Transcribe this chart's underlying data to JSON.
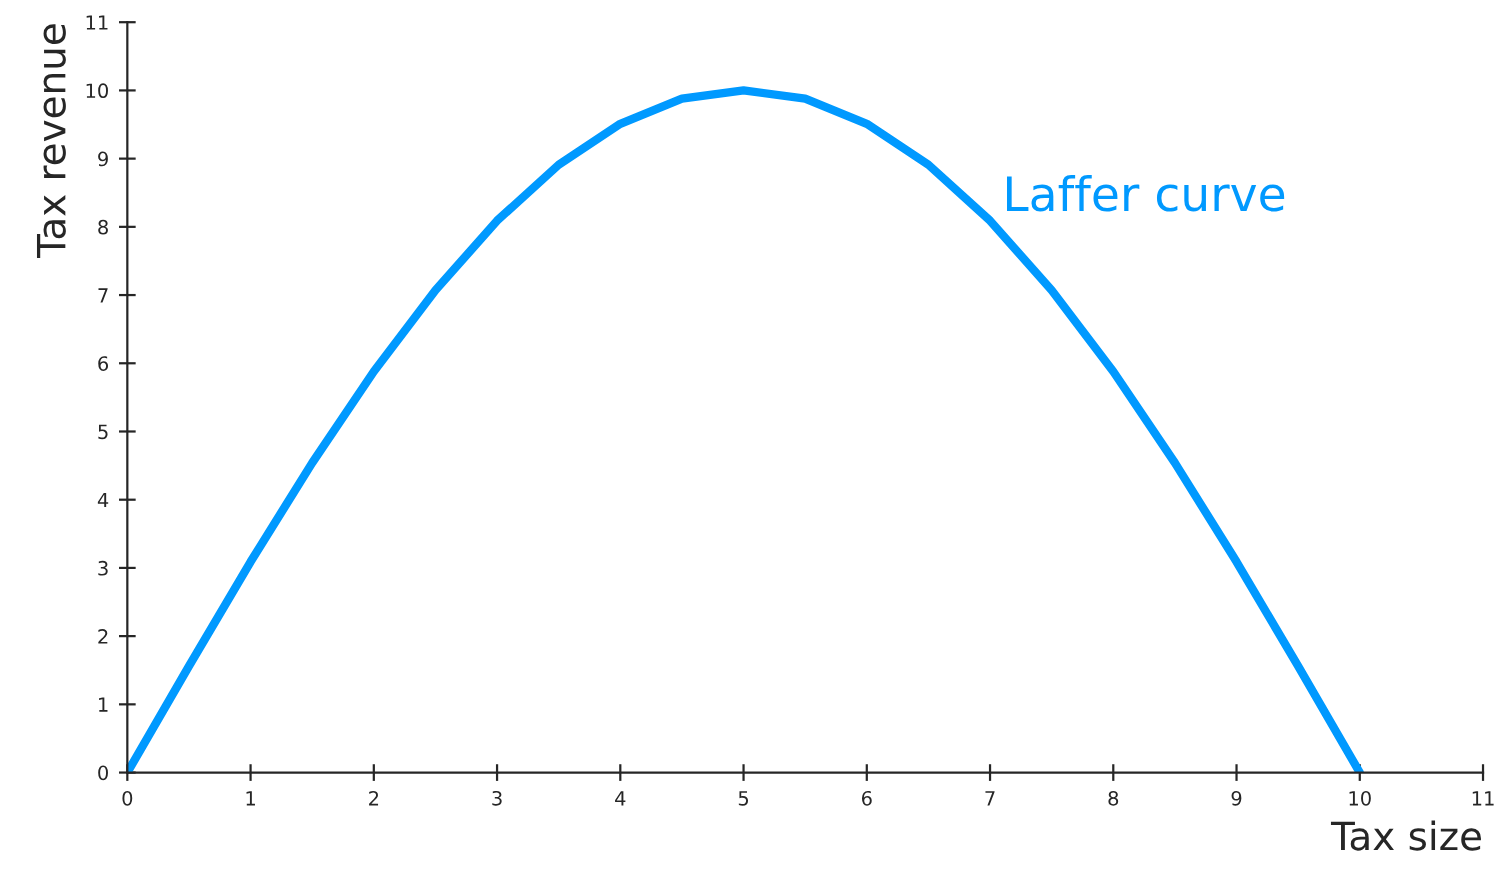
{
  "chart_data": {
    "type": "line",
    "xlabel": "Tax size",
    "ylabel": "Tax revenue",
    "x": [
      0,
      0.5,
      1,
      1.5,
      2,
      2.5,
      3,
      3.5,
      4,
      4.5,
      5,
      5.5,
      6,
      6.5,
      7,
      7.5,
      8,
      8.5,
      9,
      9.5,
      10
    ],
    "series": [
      {
        "name": "Laffer curve",
        "color": "#0099ff",
        "values": [
          0,
          1.56,
          3.09,
          4.54,
          5.88,
          7.07,
          8.09,
          8.91,
          9.51,
          9.88,
          10,
          9.88,
          9.51,
          8.91,
          8.09,
          7.07,
          5.88,
          4.54,
          3.09,
          1.56,
          0
        ]
      }
    ],
    "xlim": [
      0,
      11
    ],
    "ylim": [
      0,
      11
    ],
    "xticks": [
      0,
      1,
      2,
      3,
      4,
      5,
      6,
      7,
      8,
      9,
      10,
      11
    ],
    "yticks": [
      0,
      1,
      2,
      3,
      4,
      5,
      6,
      7,
      8,
      9,
      10,
      11
    ],
    "grid": false,
    "legend": false,
    "marker": "none",
    "line_style": "solid"
  }
}
